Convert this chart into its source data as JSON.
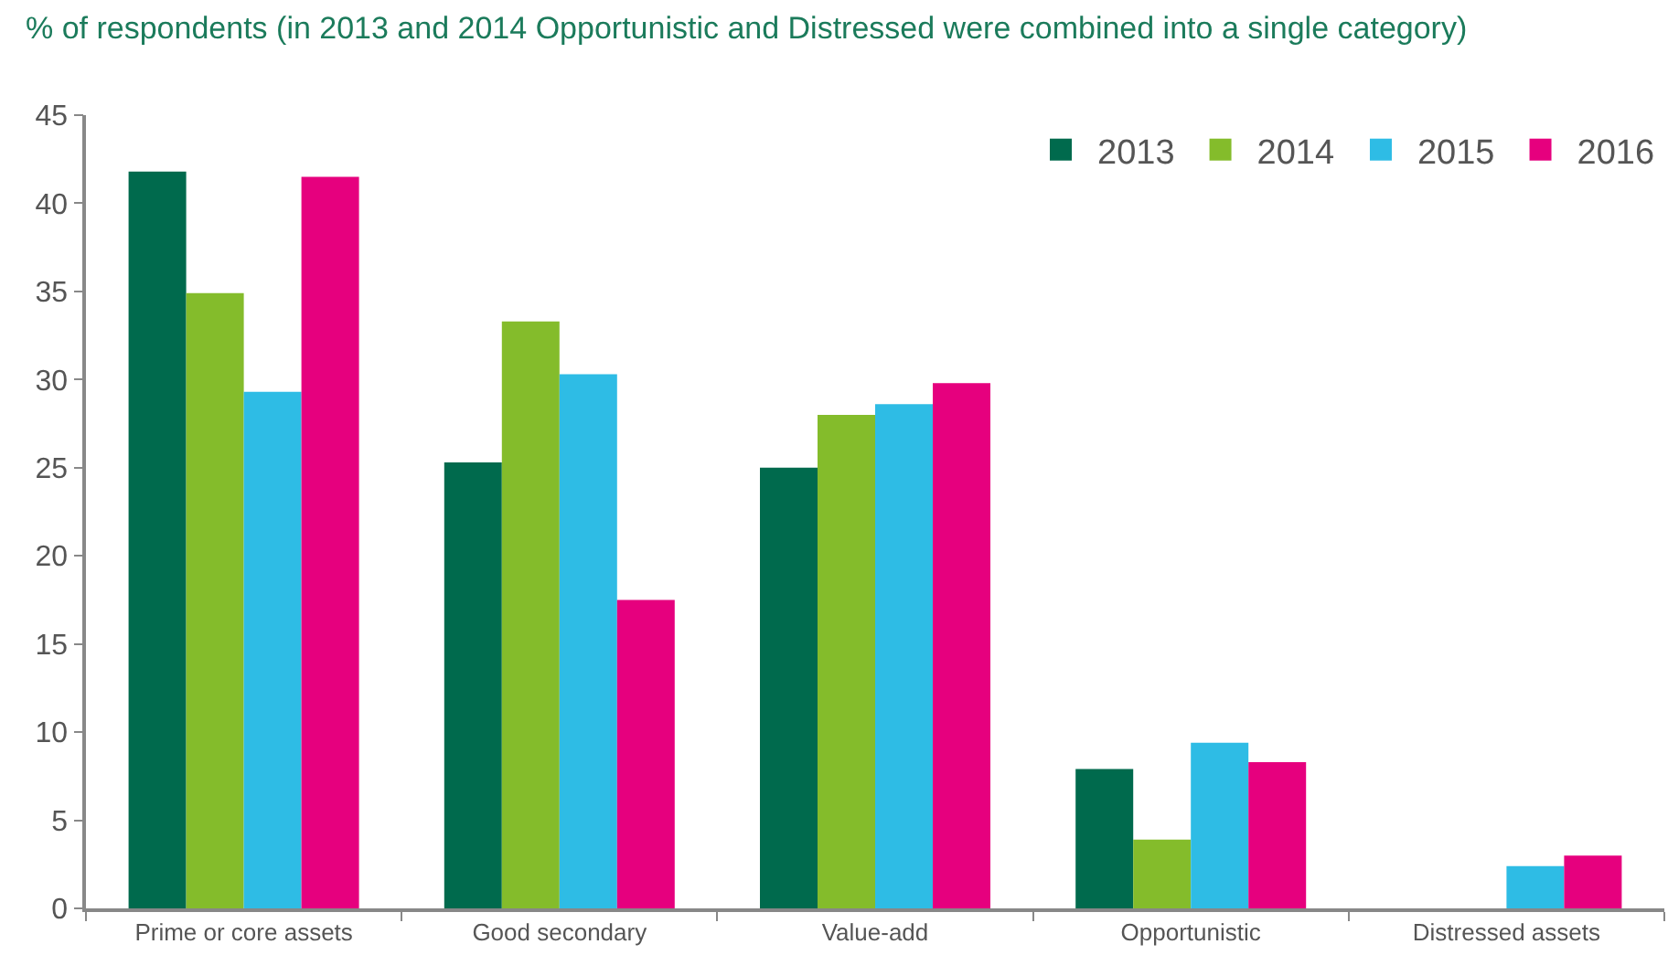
{
  "chart_data": {
    "type": "bar",
    "title": "% of respondents (in 2013 and 2014 Opportunistic and Distressed were combined into a single category)",
    "categories": [
      "Prime or core assets",
      "Good secondary",
      "Value-add",
      "Opportunistic",
      "Distressed assets"
    ],
    "series": [
      {
        "name": "2013",
        "color": "#006a4d",
        "values": [
          41.8,
          25.3,
          25.0,
          7.9,
          null
        ]
      },
      {
        "name": "2014",
        "color": "#84bc2b",
        "values": [
          34.9,
          33.3,
          28.0,
          3.9,
          null
        ]
      },
      {
        "name": "2015",
        "color": "#2ebce5",
        "values": [
          29.3,
          30.3,
          28.6,
          9.4,
          2.4
        ]
      },
      {
        "name": "2016",
        "color": "#e6007e",
        "values": [
          41.5,
          17.5,
          29.8,
          8.3,
          3.0
        ]
      }
    ],
    "ylim": [
      0,
      45
    ],
    "yticks": [
      0,
      5,
      10,
      15,
      20,
      25,
      30,
      35,
      40,
      45
    ],
    "grid": false,
    "legend": "top right"
  }
}
